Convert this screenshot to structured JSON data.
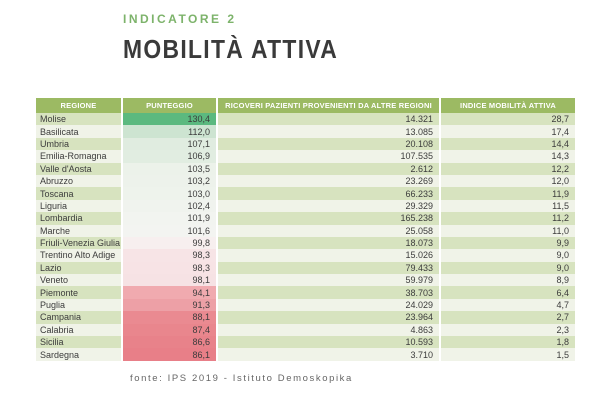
{
  "title": {
    "kicker": "INDICATORE 2",
    "heading": "MOBILITÀ ATTIVA"
  },
  "footer": {
    "source": "fonte: IPS 2019 - Istituto Demoskopika"
  },
  "colors": {
    "header_bg": "#9cba63",
    "row_odd": "#d7e3bf",
    "row_even": "#f0f3e8",
    "kicker_green": "#7db36b",
    "heading_dark": "#3a3a3a",
    "scale_high_green": "#5bb97f",
    "scale_low_red": "#e87f88"
  },
  "chart_data": {
    "type": "table",
    "title": "MOBILITÀ ATTIVA (INDICATORE 2)",
    "columns": [
      "REGIONE",
      "PUNTEGGIO",
      "RICOVERI PAZIENTI PROVENIENTI DA ALTRE REGIONI",
      "INDICE MOBILITÀ ATTIVA"
    ],
    "conditional_formatting": "red-white-green color scale applied to PUNTEGGIO column",
    "rows": [
      {
        "regione": "Molise",
        "punteggio": "130,4",
        "ricoveri": "14.321",
        "indice": "28,7",
        "punteggio_color": "#5bb97f"
      },
      {
        "regione": "Basilicata",
        "punteggio": "112,0",
        "ricoveri": "13.085",
        "indice": "17,4",
        "punteggio_color": "#cde4d1"
      },
      {
        "regione": "Umbria",
        "punteggio": "107,1",
        "ricoveri": "20.108",
        "indice": "14,4",
        "punteggio_color": "#e0ece0"
      },
      {
        "regione": "Emilia-Romagna",
        "punteggio": "106,9",
        "ricoveri": "107.535",
        "indice": "14,3",
        "punteggio_color": "#e1ede1"
      },
      {
        "regione": "Valle d'Aosta",
        "punteggio": "103,5",
        "ricoveri": "2.612",
        "indice": "12,2",
        "punteggio_color": "#ecf2ea"
      },
      {
        "regione": "Abruzzo",
        "punteggio": "103,2",
        "ricoveri": "23.269",
        "indice": "12,0",
        "punteggio_color": "#edf2eb"
      },
      {
        "regione": "Toscana",
        "punteggio": "103,0",
        "ricoveri": "66.233",
        "indice": "11,9",
        "punteggio_color": "#eef3ec"
      },
      {
        "regione": "Liguria",
        "punteggio": "102,4",
        "ricoveri": "29.329",
        "indice": "11,5",
        "punteggio_color": "#f0f3ee"
      },
      {
        "regione": "Lombardia",
        "punteggio": "101,9",
        "ricoveri": "165.238",
        "indice": "11,2",
        "punteggio_color": "#f2f4f0"
      },
      {
        "regione": "Marche",
        "punteggio": "101,6",
        "ricoveri": "25.058",
        "indice": "11,0",
        "punteggio_color": "#f3f4f1"
      },
      {
        "regione": "Friuli-Venezia Giulia",
        "punteggio": "99,8",
        "ricoveri": "18.073",
        "indice": "9,9",
        "punteggio_color": "#f7efef"
      },
      {
        "regione": "Trentino Alto Adige",
        "punteggio": "98,3",
        "ricoveri": "15.026",
        "indice": "9,0",
        "punteggio_color": "#f7e4e6"
      },
      {
        "regione": "Lazio",
        "punteggio": "98,3",
        "ricoveri": "79.433",
        "indice": "9,0",
        "punteggio_color": "#f7e3e5"
      },
      {
        "regione": "Veneto",
        "punteggio": "98,1",
        "ricoveri": "59.979",
        "indice": "8,9",
        "punteggio_color": "#f6e2e4"
      },
      {
        "regione": "Piemonte",
        "punteggio": "94,1",
        "ricoveri": "38.703",
        "indice": "6,4",
        "punteggio_color": "#f0aaaf"
      },
      {
        "regione": "Puglia",
        "punteggio": "91,3",
        "ricoveri": "24.029",
        "indice": "4,7",
        "punteggio_color": "#eda0a6"
      },
      {
        "regione": "Campania",
        "punteggio": "88,1",
        "ricoveri": "23.964",
        "indice": "2,7",
        "punteggio_color": "#ea8a91"
      },
      {
        "regione": "Calabria",
        "punteggio": "87,4",
        "ricoveri": "4.863",
        "indice": "2,3",
        "punteggio_color": "#e9868d"
      },
      {
        "regione": "Sicilia",
        "punteggio": "86,6",
        "ricoveri": "10.593",
        "indice": "1,8",
        "punteggio_color": "#e8828a"
      },
      {
        "regione": "Sardegna",
        "punteggio": "86,1",
        "ricoveri": "3.710",
        "indice": "1,5",
        "punteggio_color": "#e87f88"
      }
    ]
  }
}
